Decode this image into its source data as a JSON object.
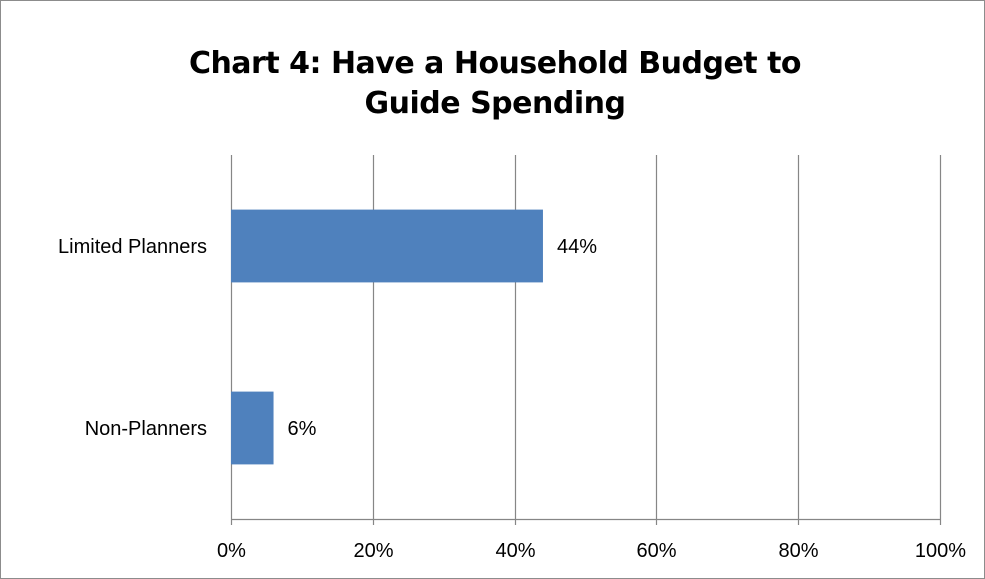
{
  "chart_data": {
    "type": "bar",
    "orientation": "horizontal",
    "title_lines": [
      "Chart 4: Have a Household Budget to",
      "Guide Spending"
    ],
    "categories": [
      "Limited Planners",
      "Non-Planners"
    ],
    "values": [
      44,
      6
    ],
    "data_labels": [
      "44%",
      "6%"
    ],
    "x_ticks": [
      0,
      20,
      40,
      60,
      80,
      100
    ],
    "x_tick_labels": [
      "0%",
      "20%",
      "40%",
      "60%",
      "80%",
      "100%"
    ],
    "xlim": [
      0,
      100
    ],
    "grid": "vertical",
    "legend": "none",
    "bar_color": "#4F81BD",
    "grid_color": "#868686"
  }
}
